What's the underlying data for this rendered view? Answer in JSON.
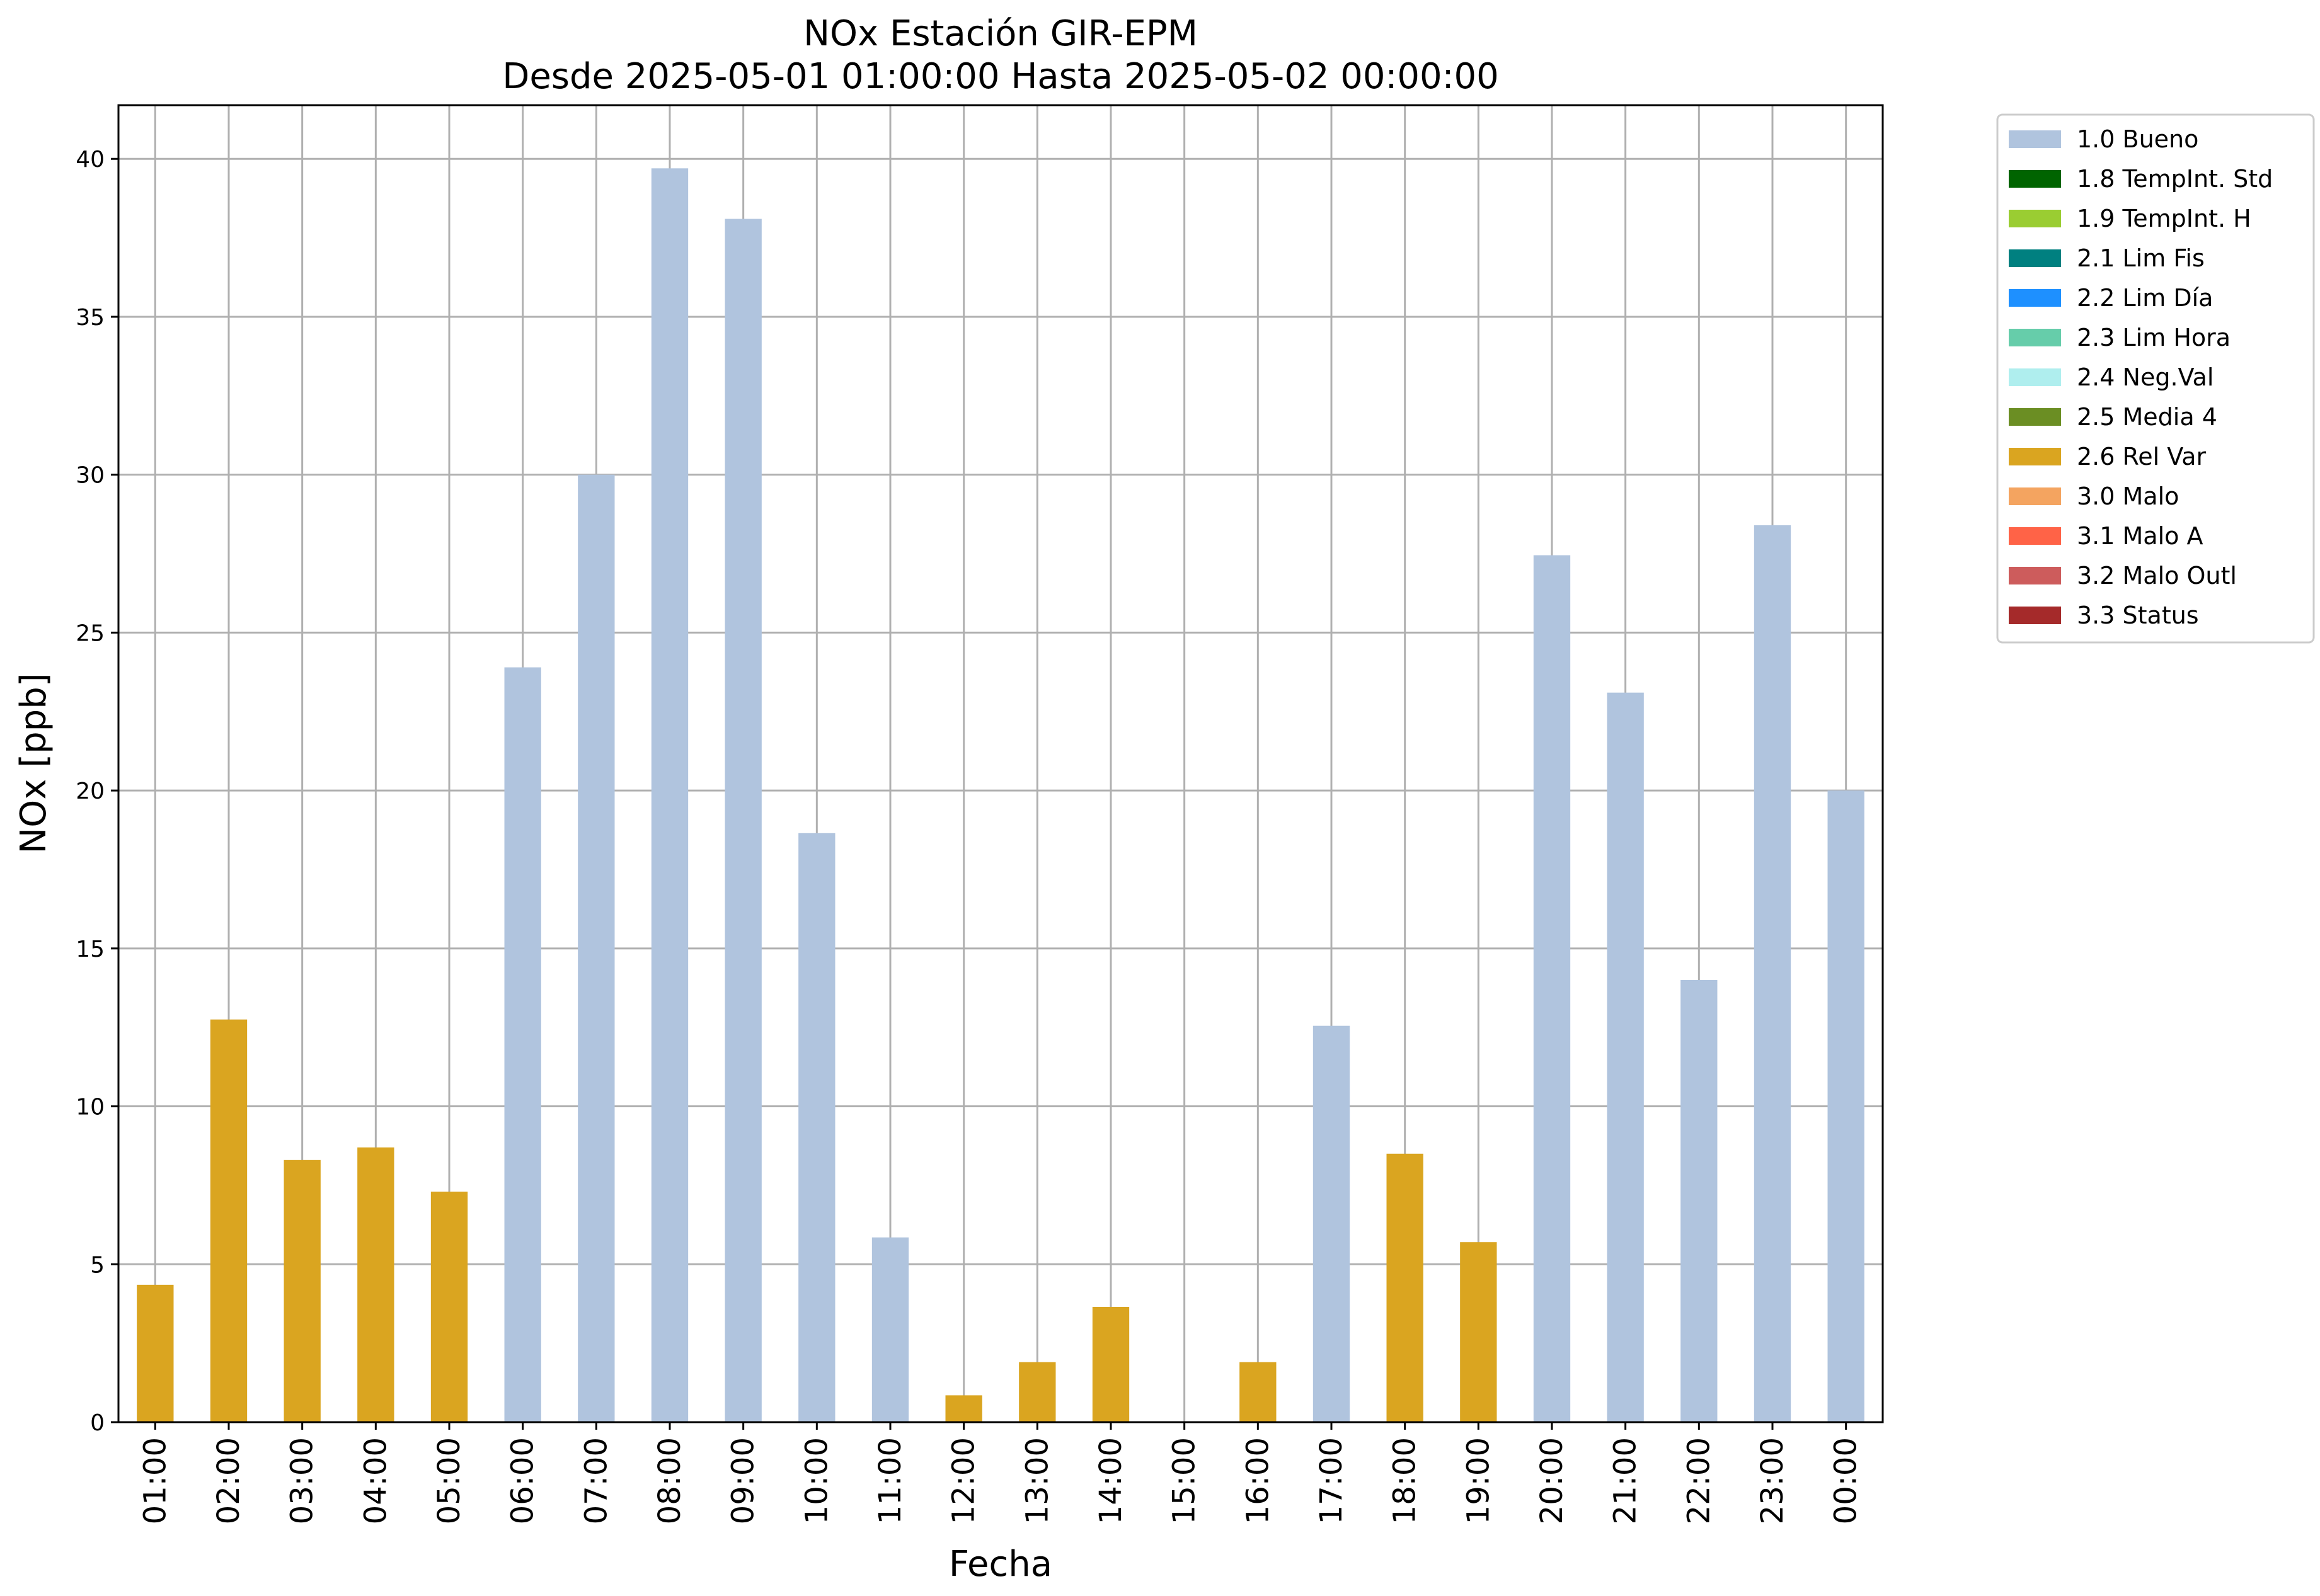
{
  "chart_data": {
    "type": "bar",
    "title": "NOx Estación GIR-EPM",
    "subtitle": "Desde 2025-05-01 01:00:00 Hasta 2025-05-02 00:00:00",
    "xlabel": "Fecha",
    "ylabel": "NOx [ppb]",
    "ylim": [
      0,
      41.7
    ],
    "yticks": [
      "0",
      "5",
      "10",
      "15",
      "20",
      "25",
      "30",
      "35",
      "40"
    ],
    "grid": true,
    "legend_position": "outside-top-right",
    "categories": [
      "01:00",
      "02:00",
      "03:00",
      "04:00",
      "05:00",
      "06:00",
      "07:00",
      "08:00",
      "09:00",
      "10:00",
      "11:00",
      "12:00",
      "13:00",
      "14:00",
      "15:00",
      "16:00",
      "17:00",
      "18:00",
      "19:00",
      "20:00",
      "21:00",
      "22:00",
      "23:00",
      "00:00"
    ],
    "values": [
      4.35,
      12.75,
      8.3,
      8.7,
      7.3,
      23.9,
      30.0,
      39.7,
      38.1,
      18.65,
      5.85,
      0.85,
      1.9,
      3.65,
      0,
      1.9,
      12.55,
      8.5,
      5.7,
      27.45,
      23.1,
      14.0,
      28.4,
      20.0
    ],
    "flags": [
      "2.6 Rel Var",
      "2.6 Rel Var",
      "2.6 Rel Var",
      "2.6 Rel Var",
      "2.6 Rel Var",
      "1.0 Bueno",
      "1.0 Bueno",
      "1.0 Bueno",
      "1.0 Bueno",
      "1.0 Bueno",
      "1.0 Bueno",
      "2.6 Rel Var",
      "2.6 Rel Var",
      "2.6 Rel Var",
      "1.0 Bueno",
      "2.6 Rel Var",
      "1.0 Bueno",
      "2.6 Rel Var",
      "2.6 Rel Var",
      "1.0 Bueno",
      "1.0 Bueno",
      "1.0 Bueno",
      "1.0 Bueno",
      "1.0 Bueno"
    ],
    "legend": [
      {
        "name": "1.0 Bueno",
        "color": "#b0c4de"
      },
      {
        "name": "1.8 TempInt. Std",
        "color": "#006400"
      },
      {
        "name": "1.9 TempInt. H",
        "color": "#9acd32"
      },
      {
        "name": "2.1 Lim Fis",
        "color": "#008080"
      },
      {
        "name": "2.2 Lim Día",
        "color": "#1e90ff"
      },
      {
        "name": "2.3 Lim Hora",
        "color": "#66cdaa"
      },
      {
        "name": "2.4 Neg.Val",
        "color": "#afeeee"
      },
      {
        "name": "2.5 Media 4",
        "color": "#6b8e23"
      },
      {
        "name": "2.6 Rel Var",
        "color": "#daa520"
      },
      {
        "name": "3.0 Malo",
        "color": "#f4a460"
      },
      {
        "name": "3.1 Malo A",
        "color": "#ff6347"
      },
      {
        "name": "3.2 Malo Outl",
        "color": "#cd5c5c"
      },
      {
        "name": "3.3 Status",
        "color": "#a52a2a"
      }
    ]
  }
}
